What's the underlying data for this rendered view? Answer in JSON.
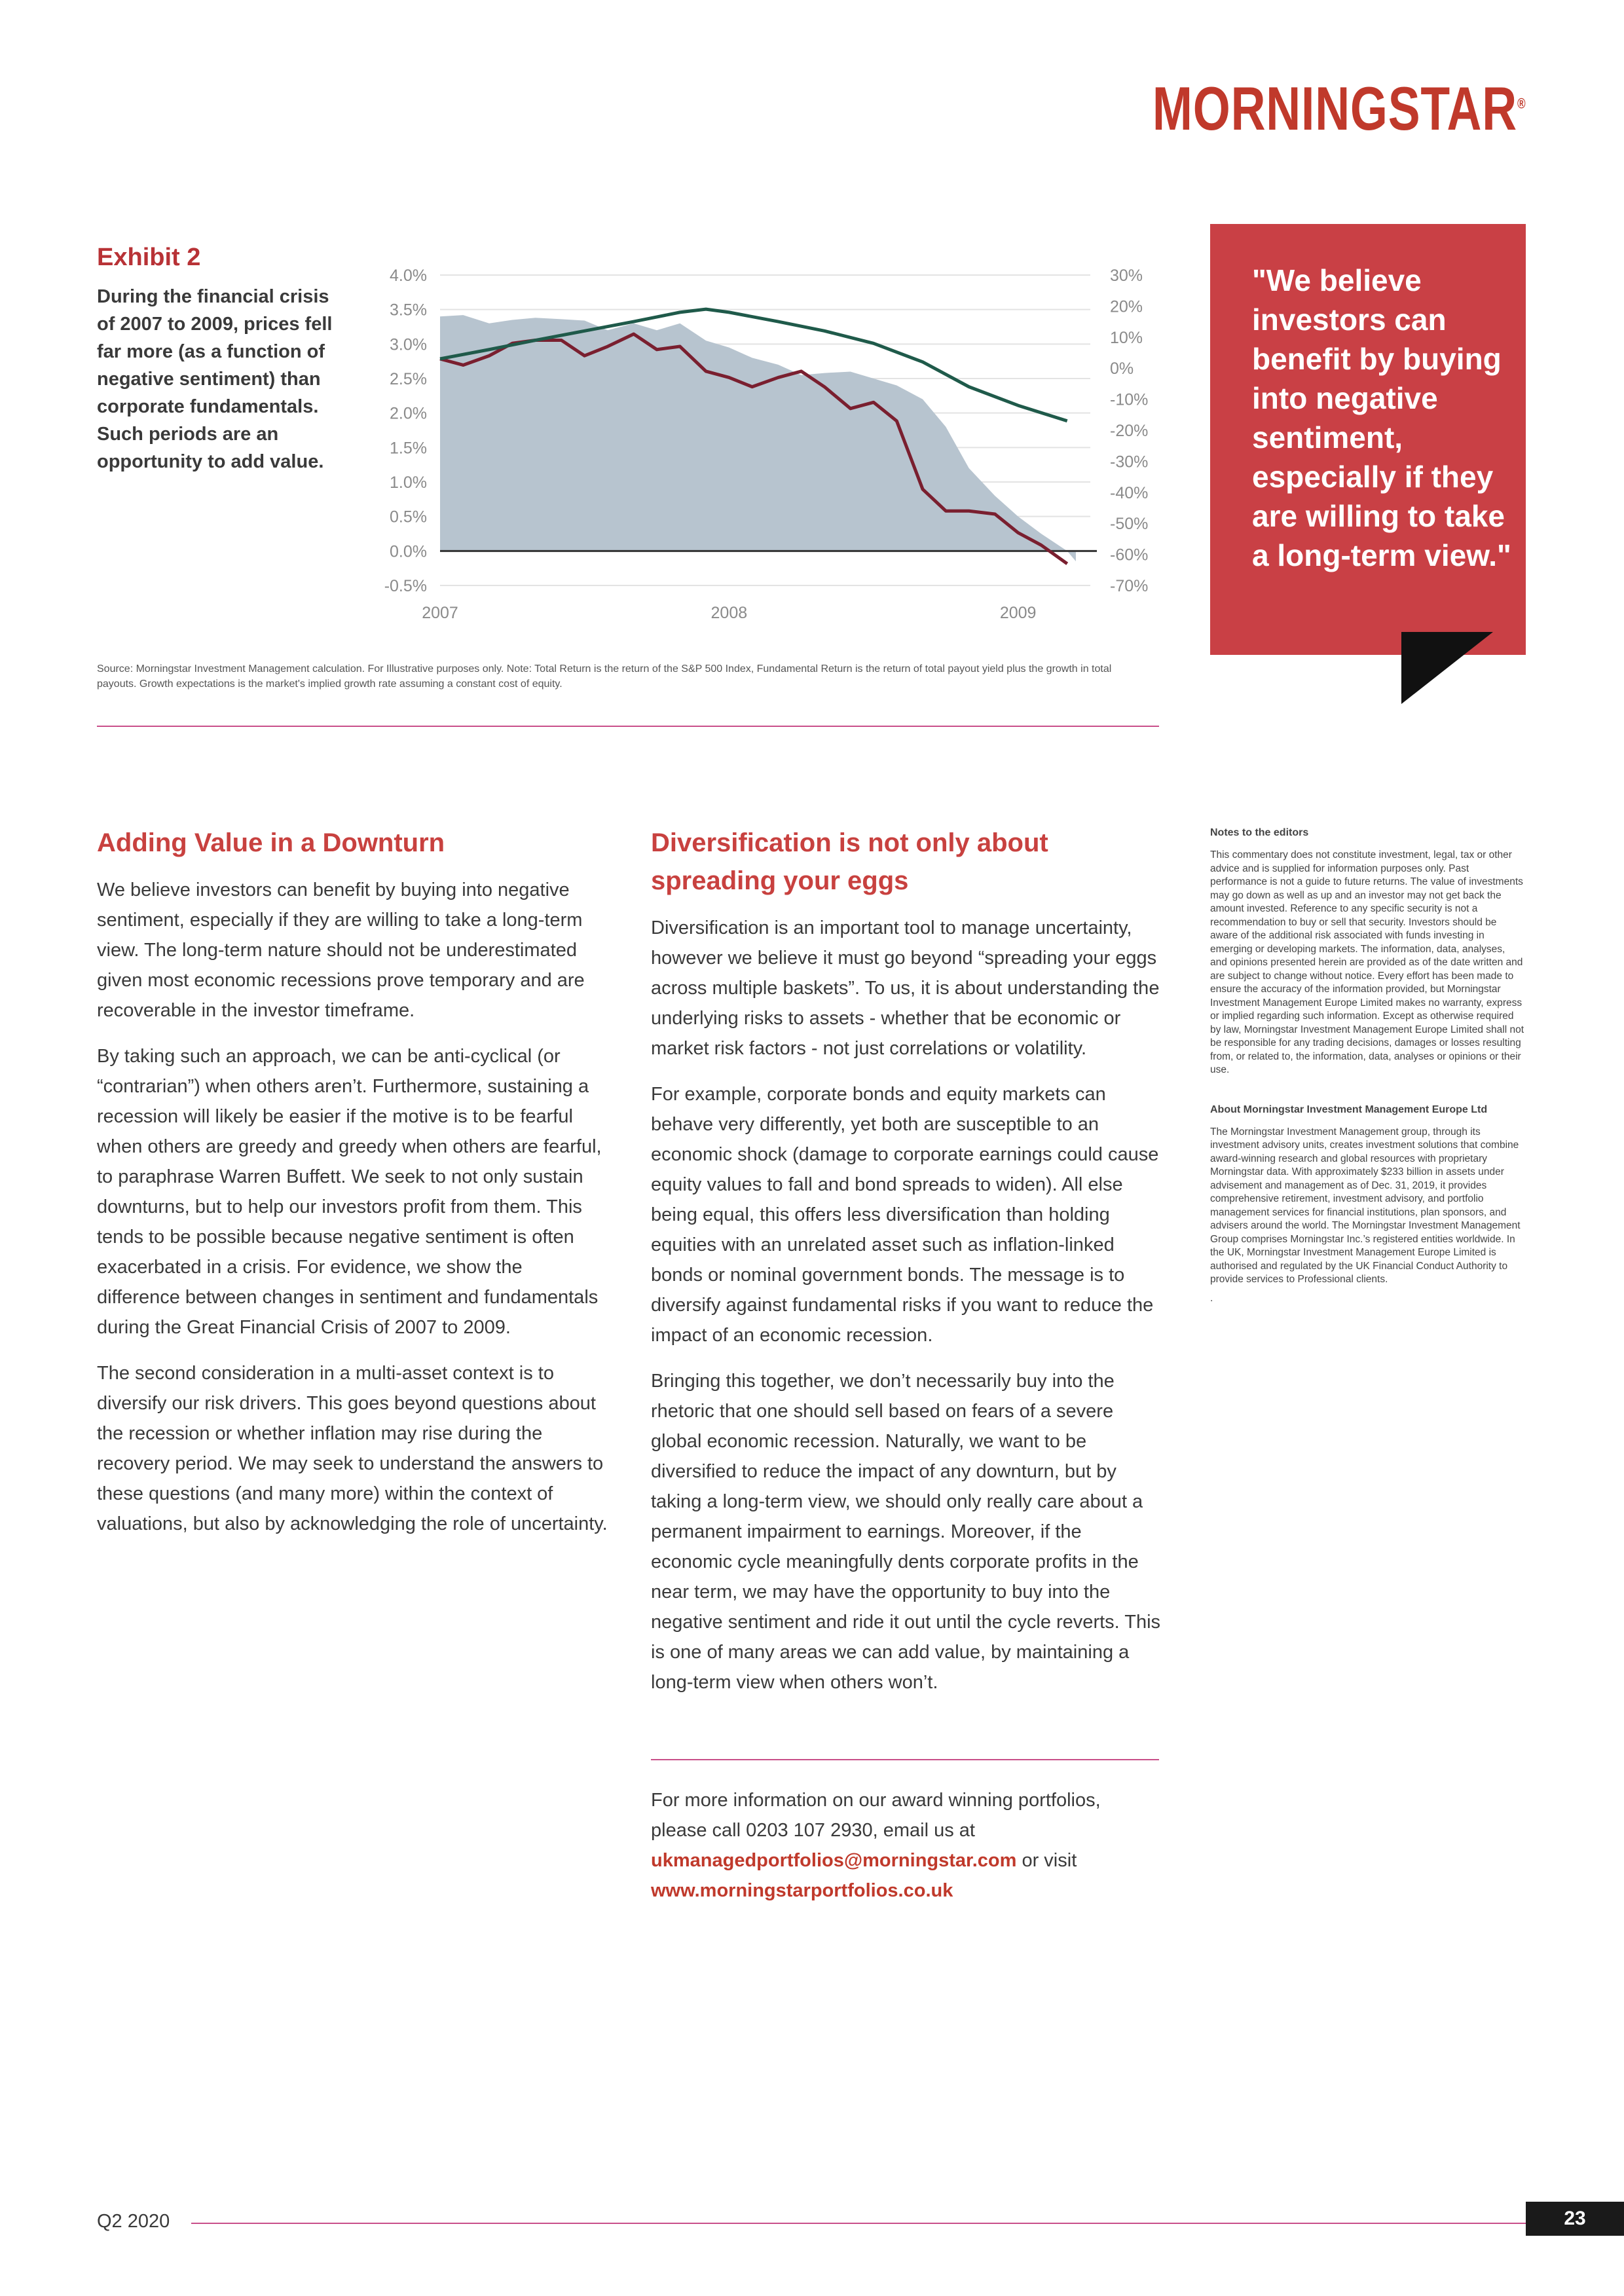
{
  "header": {
    "logo_text": "MORNINGSTAR",
    "logo_reg": "®"
  },
  "exhibit": {
    "label": "Exhibit 2",
    "description": "During the financial crisis of 2007 to 2009, prices fell far more (as a function of negative sentiment) than corporate fundamentals. Such periods are an opportunity to add value.",
    "source": "Source: Morningstar Investment Management calculation. For Illustrative purposes only. Note: Total Return is the return of the S&P 500 Index, Fundamental Return is the return of total payout yield plus the growth in total payouts. Growth expectations is the market's implied growth rate assuming a constant cost of equity."
  },
  "chart_data": {
    "type": "area",
    "title": "",
    "left_axis": {
      "ticks": [
        "4.0%",
        "3.5%",
        "3.0%",
        "2.5%",
        "2.0%",
        "1.5%",
        "1.0%",
        "0.5%",
        "0.0%",
        "-0.5%"
      ],
      "range": [
        -0.5,
        4.0
      ]
    },
    "right_axis": {
      "ticks": [
        "30%",
        "20%",
        "10%",
        "0%",
        "-10%",
        "-20%",
        "-30%",
        "-40%",
        "-50%",
        "-60%",
        "-70%"
      ],
      "range": [
        -70,
        30
      ]
    },
    "x_ticks": [
      "2007",
      "2008",
      "2009"
    ],
    "x_range": [
      2007.0,
      2009.25
    ],
    "colors": {
      "area": "#b7c4cf",
      "total_return": "#7a1f2f",
      "fundamental_return": "#1f5a4a",
      "zero_line": "#333333"
    },
    "series": [
      {
        "axis": "left",
        "style": "area",
        "x": [
          2007.0,
          2007.08,
          2007.17,
          2007.25,
          2007.33,
          2007.42,
          2007.5,
          2007.58,
          2007.67,
          2007.75,
          2007.83,
          2007.92,
          2008.0,
          2008.08,
          2008.17,
          2008.25,
          2008.33,
          2008.42,
          2008.5,
          2008.58,
          2008.67,
          2008.75,
          2008.83,
          2008.92,
          2009.0,
          2009.08,
          2009.17,
          2009.2
        ],
        "values": [
          3.4,
          3.42,
          3.3,
          3.35,
          3.38,
          3.36,
          3.34,
          3.2,
          3.3,
          3.2,
          3.3,
          3.05,
          2.95,
          2.8,
          2.7,
          2.55,
          2.58,
          2.6,
          2.5,
          2.4,
          2.2,
          1.8,
          1.2,
          0.8,
          0.5,
          0.25,
          0.0,
          -0.15
        ]
      },
      {
        "axis": "right",
        "style": "line",
        "x": [
          2007.0,
          2007.08,
          2007.17,
          2007.25,
          2007.33,
          2007.42,
          2007.5,
          2007.58,
          2007.67,
          2007.75,
          2007.83,
          2007.92,
          2008.0,
          2008.08,
          2008.17,
          2008.25,
          2008.33,
          2008.42,
          2008.5,
          2008.58,
          2008.67,
          2008.75,
          2008.83,
          2008.92,
          2009.0,
          2009.08,
          2009.17
        ],
        "values": [
          3,
          1,
          4,
          8,
          9,
          9,
          4,
          7,
          11,
          6,
          7,
          -1,
          -3,
          -6,
          -3,
          -1,
          -6,
          -13,
          -11,
          -17,
          -39,
          -46,
          -46,
          -47,
          -53,
          -57,
          -63
        ]
      },
      {
        "axis": "right",
        "style": "line",
        "x": [
          2007.0,
          2007.17,
          2007.33,
          2007.5,
          2007.67,
          2007.83,
          2007.92,
          2008.0,
          2008.17,
          2008.33,
          2008.5,
          2008.67,
          2008.83,
          2009.0,
          2009.17
        ],
        "values": [
          3,
          6,
          9,
          12,
          15,
          18,
          19,
          18,
          15,
          12,
          8,
          2,
          -6,
          -12,
          -17
        ]
      }
    ]
  },
  "quote": {
    "text": "\"We believe investors can benefit by buying into negative sentiment, especially if they are willing to take a long-term view.\""
  },
  "column1": {
    "heading": "Adding Value in a Downturn",
    "paragraphs": [
      "We believe investors can benefit by buying into negative sentiment, especially if they are willing to take a long-term view. The long-term nature should not be underestimated given most economic recessions prove temporary and are recoverable in the investor timeframe.",
      "By taking such an approach, we can be anti-cyclical (or “contrarian”) when others aren’t. Furthermore, sustaining a recession will likely be easier if the motive is to be fearful when others are greedy and greedy when others are fearful, to paraphrase Warren Buffett. We seek to not only sustain downturns, but to help our investors profit from them. This tends to be possible because negative sentiment is often exacerbated in a crisis. For evidence, we show the difference between changes in sentiment and fundamentals during the Great Financial Crisis of 2007 to 2009.",
      "The second consideration in a multi-asset context is to diversify our risk drivers. This goes beyond questions about the recession or whether inflation may rise during the recovery period. We may seek to understand the answers to these questions (and many more) within the context of valuations, but also by acknowledging the role of uncertainty."
    ]
  },
  "column2": {
    "heading": "Diversification is not only about spreading your eggs",
    "paragraphs": [
      "Diversification is an important tool to manage uncertainty, however we believe it must go beyond “spreading your eggs across multiple baskets”. To us, it is about understanding the underlying risks to assets - whether that be economic or market risk factors - not just correlations or volatility.",
      "For example, corporate bonds and equity markets can behave very differently, yet both are susceptible to an economic shock (damage to corporate earnings could cause equity values to fall and bond spreads to widen). All else being equal, this offers less diversification than holding equities with an unrelated asset such as inflation-linked bonds or nominal government bonds. The message is to diversify against fundamental risks if you want to reduce the impact of an economic recession.",
      "Bringing this together, we don’t necessarily buy into the rhetoric that one should sell based on fears of a severe global economic recession. Naturally, we want to be diversified to reduce the impact of any downturn, but by taking a long-term view, we should only really care about a permanent impairment to earnings. Moreover, if the economic cycle meaningfully dents corporate profits in the near term, we may have the opportunity to buy into the negative sentiment and ride it out until the cycle reverts. This is one of many areas we can add value, by maintaining a long-term view when others won’t."
    ],
    "contact_intro": "For more information on our award winning portfolios, please call 0203 107 2930, email us at",
    "email": "ukmanagedportfolios@morningstar.com",
    "or_visit": "or visit",
    "website": "www.morningstarportfolios.co.uk"
  },
  "notes": {
    "editors_heading": "Notes to the editors",
    "editors_text": "This commentary does not constitute investment, legal, tax or other advice and is supplied for information purposes only. Past performance is not a guide to future returns. The value of investments may go down as well as up and an investor may not get back the amount invested. Reference to any specific security is not a recommendation to buy or sell that security. Investors should be aware of the additional risk associated with funds investing in emerging or developing markets. The information, data, analyses, and opinions presented herein are provided as of the date written and are subject to change without notice. Every effort has been made to ensure the accuracy of the information provided, but Morningstar Investment Management Europe Limited makes no warranty, express or implied regarding such information. Except as otherwise required by law, Morningstar Investment Management Europe Limited shall not be responsible for any trading decisions, damages or losses resulting from, or related to, the information, data, analyses or opinions or their use.",
    "about_heading": "About Morningstar Investment Management Europe Ltd",
    "about_text": "The Morningstar Investment Management group, through its investment advisory units, creates investment solutions that combine award-winning research and global resources with proprietary Morningstar data. With approximately $233 billion in assets under advisement and management as of Dec. 31, 2019, it provides comprehensive retirement, investment advisory, and portfolio management services for financial institutions, plan sponsors, and advisers around the world. The Morningstar Investment Management Group comprises Morningstar Inc.’s registered entities worldwide. In the UK, Morningstar Investment Management Europe Limited is authorised and regulated by the UK Financial Conduct Authority to provide services to Professional clients.",
    "trailing_dot": "."
  },
  "footer": {
    "label": "Q2 2020",
    "page_number": "23"
  }
}
